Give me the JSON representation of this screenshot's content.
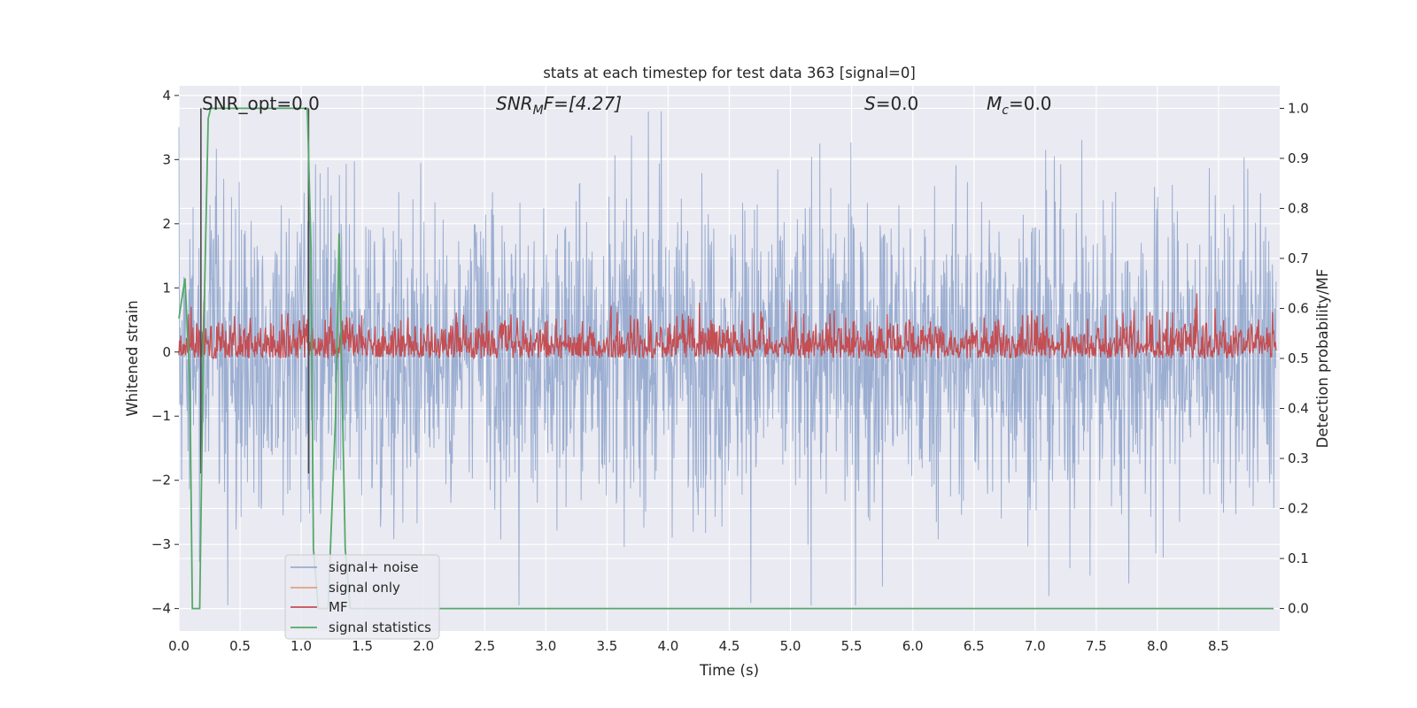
{
  "chart_data": {
    "type": "line",
    "title": "stats at each timestep for test data 363 [signal=0]",
    "xlabel": "Time (s)",
    "ylabel": "Whitened strain",
    "ylabel_right": "Detection probability/MF",
    "xlim": [
      0.0,
      9.0
    ],
    "ylim": [
      -4.35,
      4.15
    ],
    "ylim_right": [
      -0.045,
      1.045
    ],
    "x_ticks": [
      "0.0",
      "0.5",
      "1.0",
      "1.5",
      "2.0",
      "2.5",
      "3.0",
      "3.5",
      "4.0",
      "4.5",
      "5.0",
      "5.5",
      "6.0",
      "6.5",
      "7.0",
      "7.5",
      "8.0",
      "8.5"
    ],
    "y_ticks": [
      "4",
      "3",
      "2",
      "1",
      "0",
      "−1",
      "−2",
      "−3",
      "−4"
    ],
    "y_ticks_right": [
      "1.0",
      "0.9",
      "0.8",
      "0.7",
      "0.6",
      "0.5",
      "0.4",
      "0.3",
      "0.2",
      "0.1",
      "0.0"
    ],
    "grid": true,
    "legend_position": "lower-left",
    "annotations": {
      "snr_opt": "SNR_opt=0.0",
      "snr_mf_main": "SNR",
      "snr_mf_sub": "M",
      "snr_mf_rest": "F=[4.27]",
      "s_var": "S",
      "s_rest": "=0.0",
      "mc_var": "M",
      "mc_sub": "c",
      "mc_rest": "=0.0"
    },
    "series": [
      {
        "name": "signal+ noise",
        "color": "#4c72b0",
        "axis": "left",
        "amplitude_range": [
          -3.95,
          3.75
        ]
      },
      {
        "name": "signal only",
        "color": "#dd8452",
        "axis": "left",
        "values": []
      },
      {
        "name": "MF",
        "color": "#c44e52",
        "axis": "right",
        "amplitude_range": [
          0.5,
          0.63
        ]
      },
      {
        "name": "signal statistics",
        "color": "#55a868",
        "axis": "right",
        "x": [
          0.0,
          0.05,
          0.09,
          0.11,
          0.17,
          0.2,
          0.24,
          0.26,
          1.0,
          1.05,
          1.08,
          1.1,
          1.14,
          1.18,
          1.22,
          1.28,
          1.31,
          1.36,
          1.4,
          8.95
        ],
        "y": [
          0.58,
          0.66,
          0.45,
          0.0,
          0.0,
          0.52,
          0.98,
          1.0,
          1.0,
          1.0,
          0.72,
          0.12,
          0.0,
          0.0,
          0.0,
          0.38,
          0.75,
          0.12,
          0.0,
          0.0
        ]
      }
    ],
    "vertical_markers": [
      {
        "x": 0.18,
        "color": "#4a4a4a"
      },
      {
        "x": 1.06,
        "color": "#4a4a4a"
      }
    ]
  }
}
